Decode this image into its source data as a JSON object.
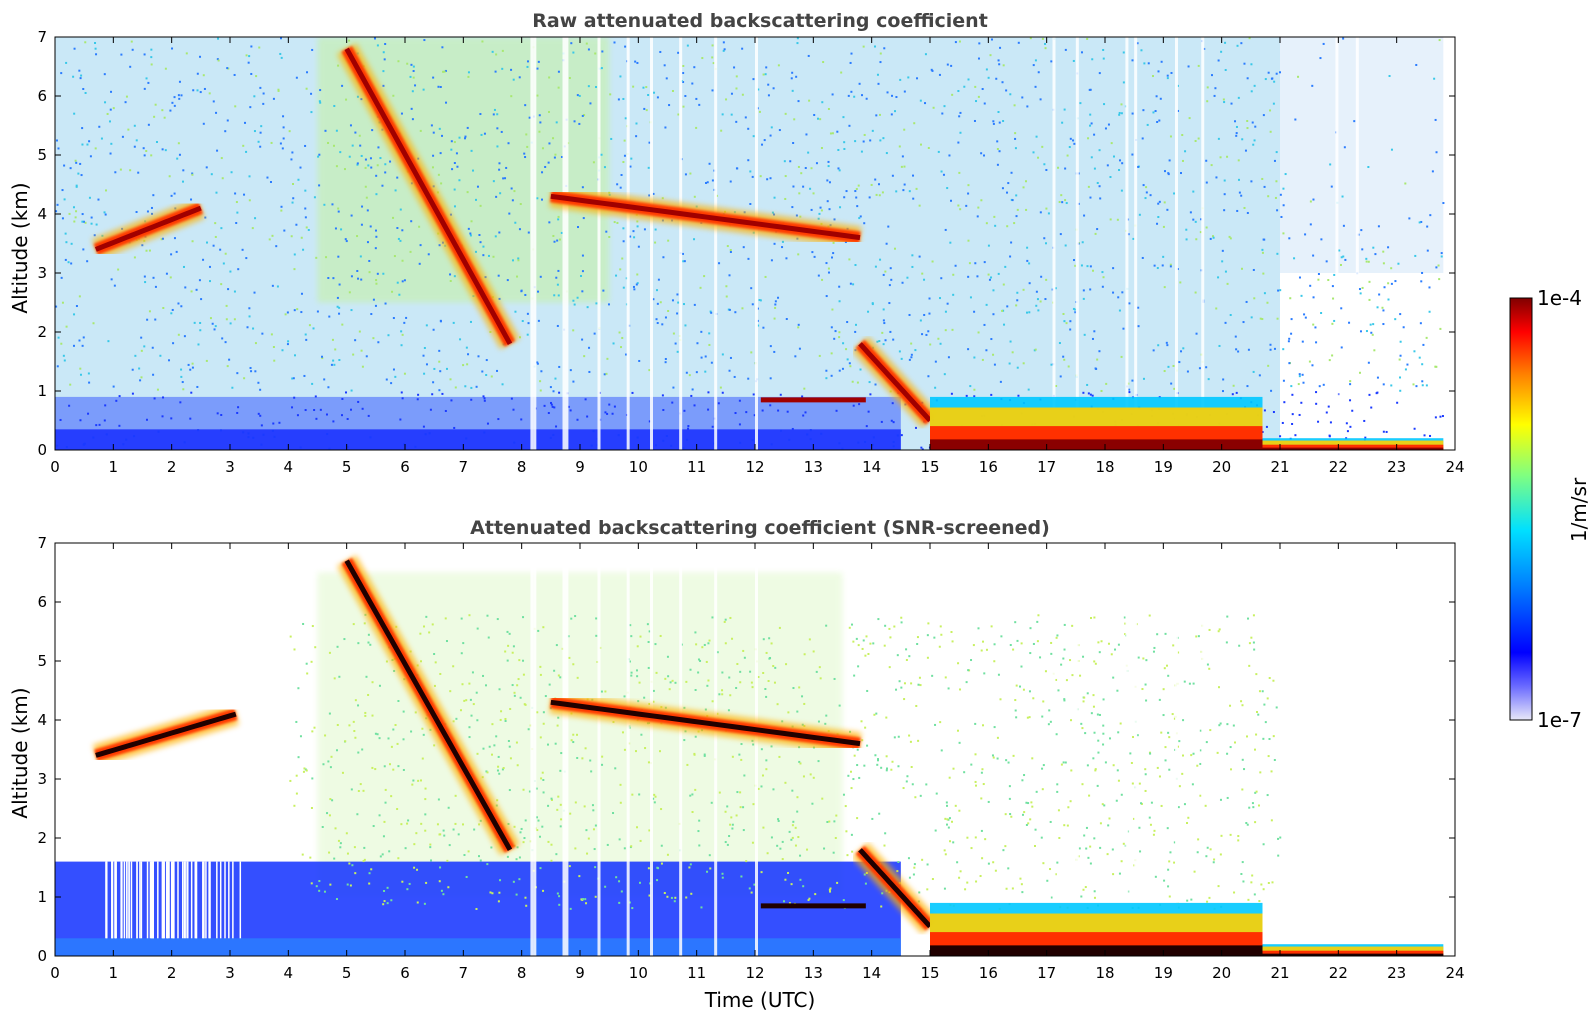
{
  "colors": {
    "background": "#ffffff",
    "title": "#444444",
    "colormap": [
      "#e8e8f8",
      "#0000ff",
      "#0080ff",
      "#00ffff",
      "#80ff80",
      "#ffff00",
      "#ff8000",
      "#ff0000",
      "#800000"
    ]
  },
  "colorbar": {
    "max_label": "1e-4",
    "min_label": "1e-7",
    "unit_label": "1/m/sr",
    "scale": "log"
  },
  "chart_data": [
    {
      "type": "heatmap",
      "title": "Raw attenuated backscattering coefficient",
      "xlabel": "",
      "ylabel": "Altitude (km)",
      "xlim": [
        0,
        24
      ],
      "ylim": [
        0,
        7
      ],
      "xticks": [
        "0",
        "1",
        "2",
        "3",
        "4",
        "5",
        "6",
        "7",
        "8",
        "9",
        "10",
        "11",
        "12",
        "13",
        "14",
        "15",
        "16",
        "17",
        "18",
        "19",
        "20",
        "21",
        "22",
        "23",
        "24"
      ],
      "yticks": [
        "0",
        "1",
        "2",
        "3",
        "4",
        "5",
        "6",
        "7"
      ],
      "grid": false,
      "features": [
        {
          "kind": "cloud_layer",
          "t_start": 0.7,
          "t_end": 2.5,
          "alt_start": 3.4,
          "alt_end": 4.1
        },
        {
          "kind": "cloud_layer",
          "t_start": 5.0,
          "t_end": 7.8,
          "alt_start": 6.8,
          "alt_end": 1.8
        },
        {
          "kind": "cloud_layer",
          "t_start": 8.5,
          "t_end": 13.8,
          "alt_start": 4.3,
          "alt_end": 3.6
        },
        {
          "kind": "cloud_layer",
          "t_start": 12.1,
          "t_end": 13.9,
          "alt_start": 0.85,
          "alt_end": 0.85
        },
        {
          "kind": "cloud_layer",
          "t_start": 13.8,
          "t_end": 15.0,
          "alt_start": 1.8,
          "alt_end": 0.5
        },
        {
          "kind": "boundary_layer",
          "t_start": 15.0,
          "t_end": 20.7,
          "alt_top": 0.9
        },
        {
          "kind": "boundary_layer",
          "t_start": 20.7,
          "t_end": 23.8,
          "alt_top": 0.2
        }
      ]
    },
    {
      "type": "heatmap",
      "title": "Attenuated backscattering coefficient (SNR-screened)",
      "xlabel": "Time (UTC)",
      "ylabel": "Altitude (km)",
      "xlim": [
        0,
        24
      ],
      "ylim": [
        0,
        7
      ],
      "xticks": [
        "0",
        "1",
        "2",
        "3",
        "4",
        "5",
        "6",
        "7",
        "8",
        "9",
        "10",
        "11",
        "12",
        "13",
        "14",
        "15",
        "16",
        "17",
        "18",
        "19",
        "20",
        "21",
        "22",
        "23",
        "24"
      ],
      "yticks": [
        "0",
        "1",
        "2",
        "3",
        "4",
        "5",
        "6",
        "7"
      ],
      "grid": false,
      "features": [
        {
          "kind": "cloud_layer",
          "t_start": 0.7,
          "t_end": 3.1,
          "alt_start": 3.4,
          "alt_end": 4.1
        },
        {
          "kind": "cloud_layer",
          "t_start": 5.0,
          "t_end": 7.8,
          "alt_start": 6.7,
          "alt_end": 1.8
        },
        {
          "kind": "cloud_layer",
          "t_start": 8.5,
          "t_end": 13.8,
          "alt_start": 4.3,
          "alt_end": 3.6
        },
        {
          "kind": "cloud_layer",
          "t_start": 12.1,
          "t_end": 13.9,
          "alt_start": 0.85,
          "alt_end": 0.85
        },
        {
          "kind": "cloud_layer",
          "t_start": 13.8,
          "t_end": 15.0,
          "alt_start": 1.8,
          "alt_end": 0.5
        },
        {
          "kind": "boundary_layer",
          "t_start": 15.0,
          "t_end": 20.7,
          "alt_top": 0.9
        },
        {
          "kind": "boundary_layer",
          "t_start": 20.7,
          "t_end": 23.8,
          "alt_top": 0.2
        }
      ]
    }
  ]
}
